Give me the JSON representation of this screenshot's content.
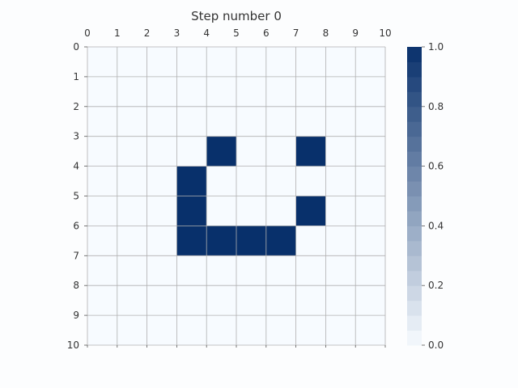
{
  "chart_data": {
    "type": "heatmap",
    "title": "Step number 0",
    "x_ticks": [
      "0",
      "1",
      "2",
      "3",
      "4",
      "5",
      "6",
      "7",
      "8",
      "9",
      "10"
    ],
    "y_ticks": [
      "0",
      "1",
      "2",
      "3",
      "4",
      "5",
      "6",
      "7",
      "8",
      "9",
      "10"
    ],
    "xlim": [
      0,
      10
    ],
    "ylim": [
      0,
      10
    ],
    "x_axis_position": "top",
    "grid": true,
    "colormap": "Blues",
    "color_low": "#f7fbff",
    "color_high": "#08306b",
    "vmin": 0.0,
    "vmax": 1.0,
    "colorbar_ticks": [
      "0.0",
      "0.2",
      "0.4",
      "0.6",
      "0.8",
      "1.0"
    ],
    "colorbar_position": "right",
    "cells": [
      [
        0,
        0,
        0,
        0,
        0,
        0,
        0,
        0,
        0,
        0
      ],
      [
        0,
        0,
        0,
        0,
        0,
        0,
        0,
        0,
        0,
        0
      ],
      [
        0,
        0,
        0,
        0,
        0,
        0,
        0,
        0,
        0,
        0
      ],
      [
        0,
        0,
        0,
        0,
        1,
        0,
        0,
        1,
        0,
        0
      ],
      [
        0,
        0,
        0,
        1,
        0,
        0,
        0,
        0,
        0,
        0
      ],
      [
        0,
        0,
        0,
        1,
        0,
        0,
        0,
        1,
        0,
        0
      ],
      [
        0,
        0,
        0,
        1,
        1,
        1,
        1,
        0,
        0,
        0
      ],
      [
        0,
        0,
        0,
        0,
        0,
        0,
        0,
        0,
        0,
        0
      ],
      [
        0,
        0,
        0,
        0,
        0,
        0,
        0,
        0,
        0,
        0
      ],
      [
        0,
        0,
        0,
        0,
        0,
        0,
        0,
        0,
        0,
        0
      ]
    ]
  }
}
